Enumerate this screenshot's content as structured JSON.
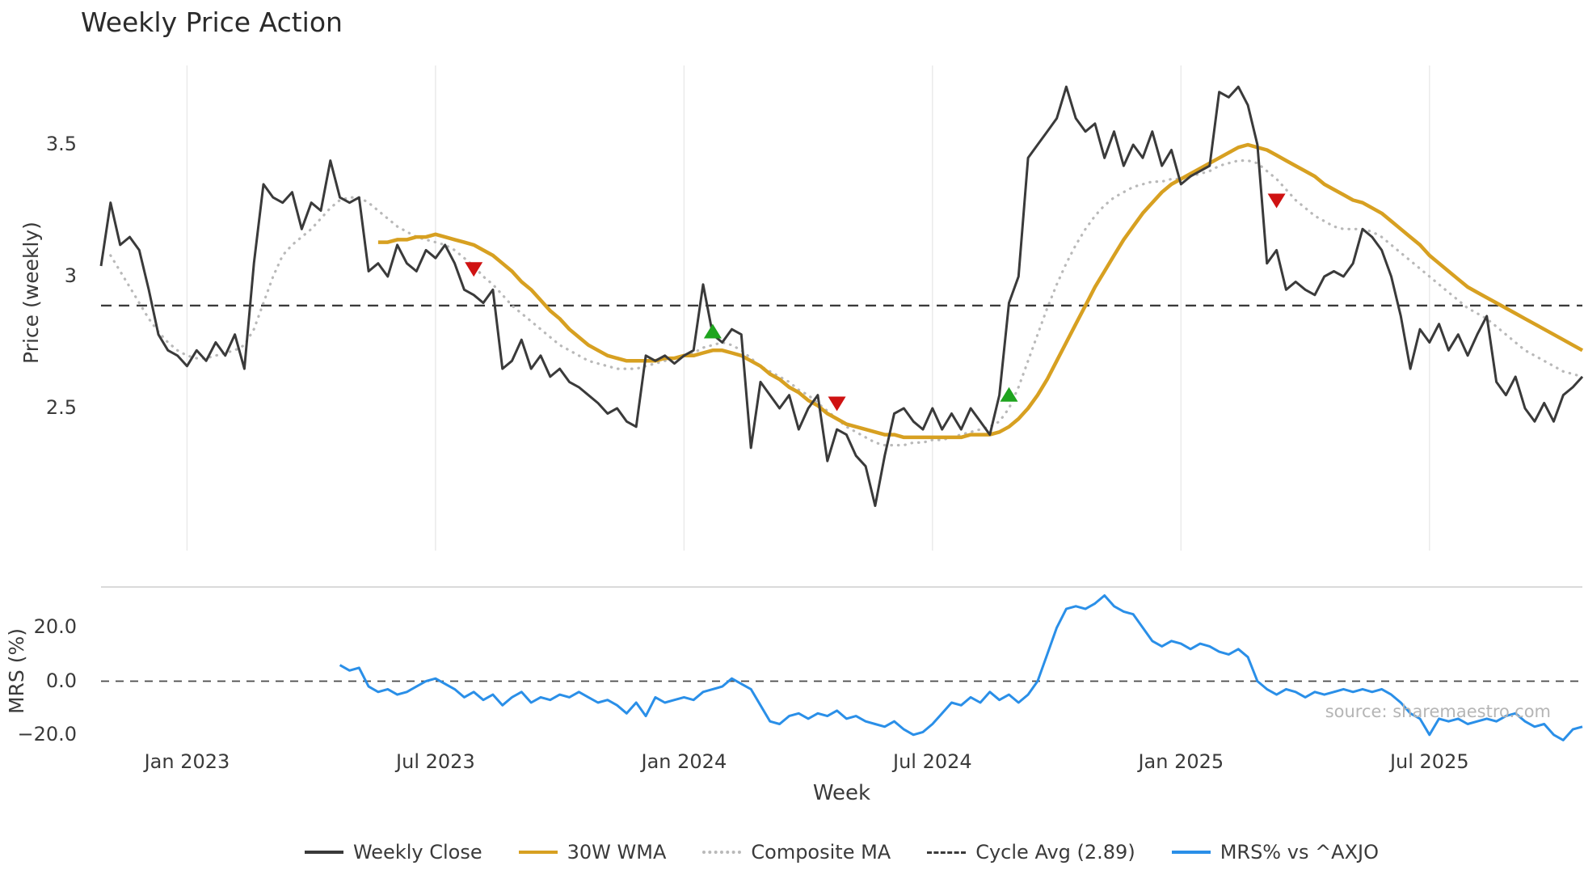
{
  "source": "source: sharemaestro.com",
  "chart_data": {
    "type": "line",
    "title": "Weekly Price Action",
    "xlabel": "Week",
    "x_ticks": {
      "weeks": [
        9,
        35,
        61,
        87,
        113,
        139
      ],
      "labels": [
        "Jan 2023",
        "Jul 2023",
        "Jan 2024",
        "Jul 2024",
        "Jan 2025",
        "Jul 2025"
      ]
    },
    "price_panel": {
      "ylabel": "Price (weekly)",
      "ylim": [
        2.05,
        3.8
      ],
      "cycle_avg": 2.89,
      "yticks": [
        {
          "v": 3.5,
          "label": "3.5"
        },
        {
          "v": 3.0,
          "label": "3"
        },
        {
          "v": 2.5,
          "label": "2.5"
        }
      ]
    },
    "mrs_panel": {
      "ylabel": "MRS (%)",
      "ylim": [
        -26,
        35
      ],
      "yticks": [
        {
          "v": 20,
          "label": "20.0"
        },
        {
          "v": 0,
          "label": "0.0"
        },
        {
          "v": -20,
          "label": "−20.0"
        }
      ]
    },
    "colors": {
      "buy": "#1fa41f",
      "sell": "#cf1212"
    },
    "series": [
      {
        "name": "Weekly Close",
        "panel": "price",
        "color": "#3a3a3a",
        "style": "solid",
        "values": [
          3.04,
          3.28,
          3.12,
          3.15,
          3.1,
          2.95,
          2.78,
          2.72,
          2.7,
          2.66,
          2.72,
          2.68,
          2.75,
          2.7,
          2.78,
          2.65,
          3.05,
          3.35,
          3.3,
          3.28,
          3.32,
          3.18,
          3.28,
          3.25,
          3.44,
          3.3,
          3.28,
          3.3,
          3.02,
          3.05,
          3.0,
          3.12,
          3.05,
          3.02,
          3.1,
          3.07,
          3.12,
          3.05,
          2.95,
          2.93,
          2.9,
          2.95,
          2.65,
          2.68,
          2.76,
          2.65,
          2.7,
          2.62,
          2.65,
          2.6,
          2.58,
          2.55,
          2.52,
          2.48,
          2.5,
          2.45,
          2.43,
          2.7,
          2.68,
          2.7,
          2.67,
          2.7,
          2.72,
          2.97,
          2.78,
          2.75,
          2.8,
          2.78,
          2.35,
          2.6,
          2.55,
          2.5,
          2.55,
          2.42,
          2.5,
          2.55,
          2.3,
          2.42,
          2.4,
          2.32,
          2.28,
          2.13,
          2.32,
          2.48,
          2.5,
          2.45,
          2.42,
          2.5,
          2.42,
          2.48,
          2.42,
          2.5,
          2.45,
          2.4,
          2.55,
          2.9,
          3.0,
          3.45,
          3.5,
          3.55,
          3.6,
          3.72,
          3.6,
          3.55,
          3.58,
          3.45,
          3.55,
          3.42,
          3.5,
          3.45,
          3.55,
          3.42,
          3.48,
          3.35,
          3.38,
          3.4,
          3.42,
          3.7,
          3.68,
          3.72,
          3.65,
          3.5,
          3.05,
          3.1,
          2.95,
          2.98,
          2.95,
          2.93,
          3.0,
          3.02,
          3.0,
          3.05,
          3.18,
          3.15,
          3.1,
          3.0,
          2.85,
          2.65,
          2.8,
          2.75,
          2.82,
          2.72,
          2.78,
          2.7,
          2.78,
          2.85,
          2.6,
          2.55,
          2.62,
          2.5,
          2.45,
          2.52,
          2.45,
          2.55,
          2.58,
          2.62
        ]
      },
      {
        "name": "30W WMA",
        "panel": "price",
        "color": "#d7a021",
        "style": "solid",
        "values": [
          null,
          null,
          null,
          null,
          null,
          null,
          null,
          null,
          null,
          null,
          null,
          null,
          null,
          null,
          null,
          null,
          null,
          null,
          null,
          null,
          null,
          null,
          null,
          null,
          null,
          null,
          null,
          null,
          null,
          3.13,
          3.13,
          3.14,
          3.14,
          3.15,
          3.15,
          3.16,
          3.15,
          3.14,
          3.13,
          3.12,
          3.1,
          3.08,
          3.05,
          3.02,
          2.98,
          2.95,
          2.91,
          2.87,
          2.84,
          2.8,
          2.77,
          2.74,
          2.72,
          2.7,
          2.69,
          2.68,
          2.68,
          2.68,
          2.68,
          2.69,
          2.69,
          2.7,
          2.7,
          2.71,
          2.72,
          2.72,
          2.71,
          2.7,
          2.68,
          2.66,
          2.63,
          2.61,
          2.58,
          2.56,
          2.53,
          2.51,
          2.48,
          2.46,
          2.44,
          2.43,
          2.42,
          2.41,
          2.4,
          2.4,
          2.39,
          2.39,
          2.39,
          2.39,
          2.39,
          2.39,
          2.39,
          2.4,
          2.4,
          2.4,
          2.41,
          2.43,
          2.46,
          2.5,
          2.55,
          2.61,
          2.68,
          2.75,
          2.82,
          2.89,
          2.96,
          3.02,
          3.08,
          3.14,
          3.19,
          3.24,
          3.28,
          3.32,
          3.35,
          3.37,
          3.39,
          3.41,
          3.43,
          3.45,
          3.47,
          3.49,
          3.5,
          3.49,
          3.48,
          3.46,
          3.44,
          3.42,
          3.4,
          3.38,
          3.35,
          3.33,
          3.31,
          3.29,
          3.28,
          3.26,
          3.24,
          3.21,
          3.18,
          3.15,
          3.12,
          3.08,
          3.05,
          3.02,
          2.99,
          2.96,
          2.94,
          2.92,
          2.9,
          2.88,
          2.86,
          2.84,
          2.82,
          2.8,
          2.78,
          2.76,
          2.74,
          2.72
        ]
      },
      {
        "name": "Composite MA",
        "panel": "price",
        "color": "#b9b9b9",
        "style": "dotted",
        "values": [
          null,
          3.08,
          3.02,
          2.96,
          2.9,
          2.84,
          2.79,
          2.75,
          2.72,
          2.7,
          2.69,
          2.69,
          2.7,
          2.71,
          2.72,
          2.74,
          2.8,
          2.9,
          3.0,
          3.08,
          3.12,
          3.15,
          3.18,
          3.22,
          3.26,
          3.29,
          3.3,
          3.3,
          3.28,
          3.25,
          3.22,
          3.19,
          3.17,
          3.15,
          3.14,
          3.13,
          3.12,
          3.1,
          3.07,
          3.04,
          3.0,
          2.97,
          2.93,
          2.89,
          2.86,
          2.83,
          2.8,
          2.77,
          2.74,
          2.72,
          2.7,
          2.68,
          2.67,
          2.66,
          2.65,
          2.65,
          2.65,
          2.66,
          2.67,
          2.68,
          2.69,
          2.7,
          2.71,
          2.73,
          2.74,
          2.75,
          2.74,
          2.72,
          2.69,
          2.66,
          2.64,
          2.62,
          2.6,
          2.57,
          2.55,
          2.52,
          2.49,
          2.46,
          2.43,
          2.41,
          2.39,
          2.37,
          2.36,
          2.36,
          2.36,
          2.37,
          2.37,
          2.38,
          2.38,
          2.39,
          2.4,
          2.41,
          2.42,
          2.43,
          2.45,
          2.5,
          2.58,
          2.68,
          2.78,
          2.88,
          2.97,
          3.05,
          3.12,
          3.18,
          3.23,
          3.27,
          3.3,
          3.32,
          3.34,
          3.35,
          3.36,
          3.36,
          3.37,
          3.37,
          3.38,
          3.39,
          3.4,
          3.42,
          3.43,
          3.44,
          3.44,
          3.43,
          3.4,
          3.37,
          3.33,
          3.29,
          3.26,
          3.23,
          3.21,
          3.19,
          3.18,
          3.18,
          3.18,
          3.17,
          3.15,
          3.12,
          3.09,
          3.06,
          3.03,
          3.0,
          2.97,
          2.94,
          2.91,
          2.88,
          2.86,
          2.84,
          2.81,
          2.78,
          2.75,
          2.72,
          2.7,
          2.68,
          2.66,
          2.64,
          2.63,
          2.62
        ]
      },
      {
        "name": "MRS% vs ^AXJO",
        "panel": "mrs",
        "color": "#2a8fe8",
        "style": "solid",
        "values": [
          null,
          null,
          null,
          null,
          null,
          null,
          null,
          null,
          null,
          null,
          null,
          null,
          null,
          null,
          null,
          null,
          null,
          null,
          null,
          null,
          null,
          null,
          null,
          null,
          null,
          6,
          4,
          5,
          -2,
          -4,
          -3,
          -5,
          -4,
          -2,
          0,
          1,
          -1,
          -3,
          -6,
          -4,
          -7,
          -5,
          -9,
          -6,
          -4,
          -8,
          -6,
          -7,
          -5,
          -6,
          -4,
          -6,
          -8,
          -7,
          -9,
          -12,
          -8,
          -13,
          -6,
          -8,
          -7,
          -6,
          -7,
          -4,
          -3,
          -2,
          1,
          -1,
          -3,
          -9,
          -15,
          -16,
          -13,
          -12,
          -14,
          -12,
          -13,
          -11,
          -14,
          -13,
          -15,
          -16,
          -17,
          -15,
          -18,
          -20,
          -19,
          -16,
          -12,
          -8,
          -9,
          -6,
          -8,
          -4,
          -7,
          -5,
          -8,
          -5,
          0,
          10,
          20,
          27,
          28,
          27,
          29,
          32,
          28,
          26,
          25,
          20,
          15,
          13,
          15,
          14,
          12,
          14,
          13,
          11,
          10,
          12,
          9,
          0,
          -3,
          -5,
          -3,
          -4,
          -6,
          -4,
          -5,
          -4,
          -3,
          -4,
          -3,
          -4,
          -3,
          -5,
          -8,
          -12,
          -14,
          -20,
          -14,
          -15,
          -14,
          -16,
          -15,
          -14,
          -15,
          -13,
          -12,
          -15,
          -17,
          -16,
          -20,
          -22,
          -18,
          -17
        ]
      }
    ],
    "markers": [
      {
        "signal": "sell",
        "week": 39,
        "price": 3.03
      },
      {
        "signal": "buy",
        "week": 64,
        "price": 2.79
      },
      {
        "signal": "sell",
        "week": 77,
        "price": 2.52
      },
      {
        "signal": "buy",
        "week": 95,
        "price": 2.55
      },
      {
        "signal": "sell",
        "week": 123,
        "price": 3.29
      }
    ],
    "legend": [
      {
        "label": "Weekly Close",
        "line": "solid",
        "color": "#3a3a3a"
      },
      {
        "label": "30W WMA",
        "line": "solid",
        "color": "#d7a021"
      },
      {
        "label": "Composite MA",
        "line": "dotted",
        "color": "#b9b9b9"
      },
      {
        "label": "Cycle Avg (2.89)",
        "line": "dashed",
        "color": "#3a3a3a"
      },
      {
        "label": "MRS% vs ^AXJO",
        "line": "solid",
        "color": "#2a8fe8"
      }
    ]
  }
}
